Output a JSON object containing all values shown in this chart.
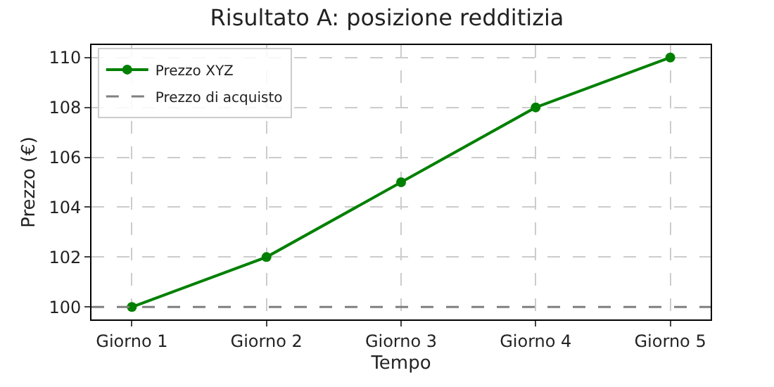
{
  "chart_data": {
    "type": "line",
    "title": "Risultato A: posizione redditizia",
    "xlabel": "Tempo",
    "ylabel": "Prezzo (€)",
    "categories": [
      "Giorno 1",
      "Giorno 2",
      "Giorno 3",
      "Giorno 4",
      "Giorno 5"
    ],
    "series": [
      {
        "name": "Prezzo XYZ",
        "color": "#008000",
        "values": [
          100,
          102,
          105,
          108,
          110
        ]
      }
    ],
    "ref_lines": [
      {
        "axis": "y",
        "value": 100,
        "label": "Prezzo di acquisto",
        "color": "#808080",
        "line_style": "dashed"
      }
    ],
    "ylim": [
      99.5,
      110.5
    ],
    "yticks": [
      100,
      102,
      104,
      106,
      108,
      110
    ],
    "grid": true,
    "legend": "top left",
    "marker": "circle",
    "line_style": "solid"
  }
}
